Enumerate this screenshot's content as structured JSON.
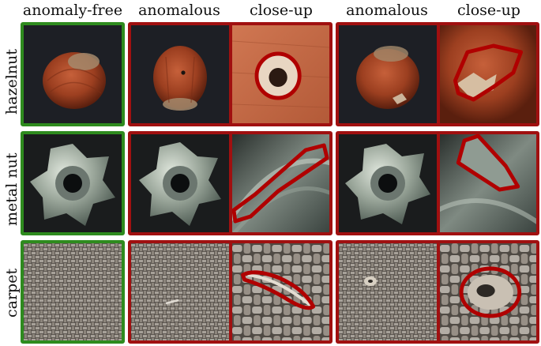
{
  "header": {
    "col1": "anomaly-free",
    "col2": "anomalous",
    "col3": "close-up",
    "col4": "anomalous",
    "col5": "close-up"
  },
  "rows": [
    {
      "label": "hazelnut"
    },
    {
      "label": "metal nut"
    },
    {
      "label": "carpet"
    }
  ],
  "colors": {
    "normal_frame": "#2e8b1e",
    "anomaly_frame": "#a01010",
    "segmentation_outline": "#b00000"
  }
}
